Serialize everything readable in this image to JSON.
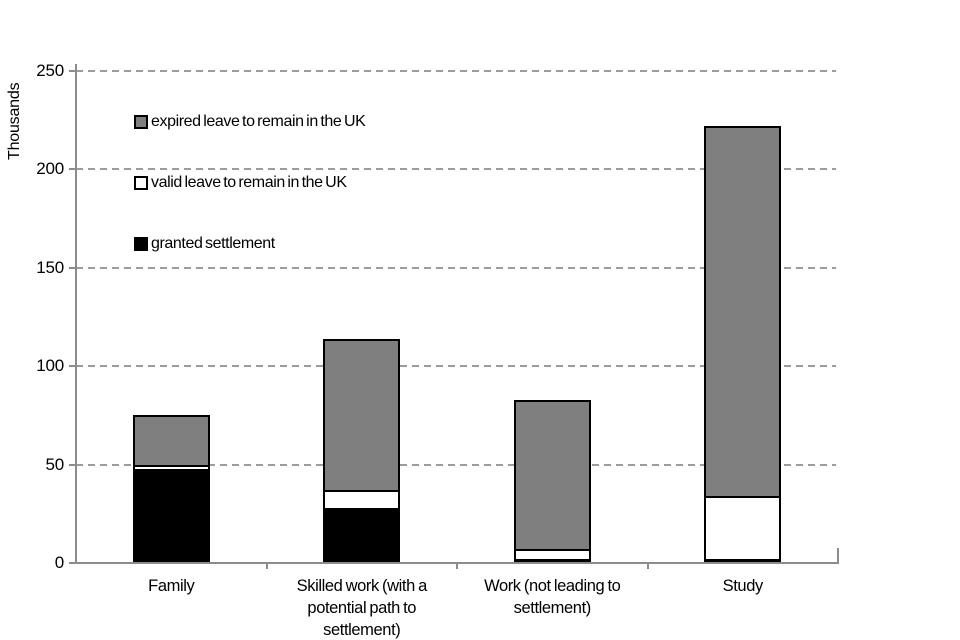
{
  "chart_data": {
    "type": "bar",
    "stacked": true,
    "title": "",
    "ylabel": "Thousands",
    "xlabel": "",
    "ylim": [
      0,
      250
    ],
    "yticks": [
      0,
      50,
      100,
      150,
      200,
      250
    ],
    "grid": "horizontal-dashed",
    "legend_position": "inside-top-left",
    "categories": [
      "Family",
      "Skilled work (with a potential path to settlement)",
      "Work (not leading to settlement)",
      "Study"
    ],
    "series": [
      {
        "name": "granted settlement",
        "color": "#000000",
        "values": [
          48,
          28,
          2,
          2
        ]
      },
      {
        "name": "valid leave to remain in the UK",
        "color": "#ffffff",
        "values": [
          2,
          9,
          5,
          32
        ]
      },
      {
        "name": "expired leave to remain in the UK",
        "color": "#7f7f7f",
        "values": [
          25,
          77,
          76,
          188
        ]
      }
    ],
    "totals": [
      75,
      114,
      83,
      222
    ],
    "legend_order_top_to_bottom": [
      "expired leave to remain in the UK",
      "valid leave to remain in the UK",
      "granted settlement"
    ],
    "colors": {
      "axis": "#8c8c8c",
      "gridline": "#9c9c9c",
      "bar_border": "#000000",
      "background": "#ffffff",
      "text": "#000000"
    }
  }
}
